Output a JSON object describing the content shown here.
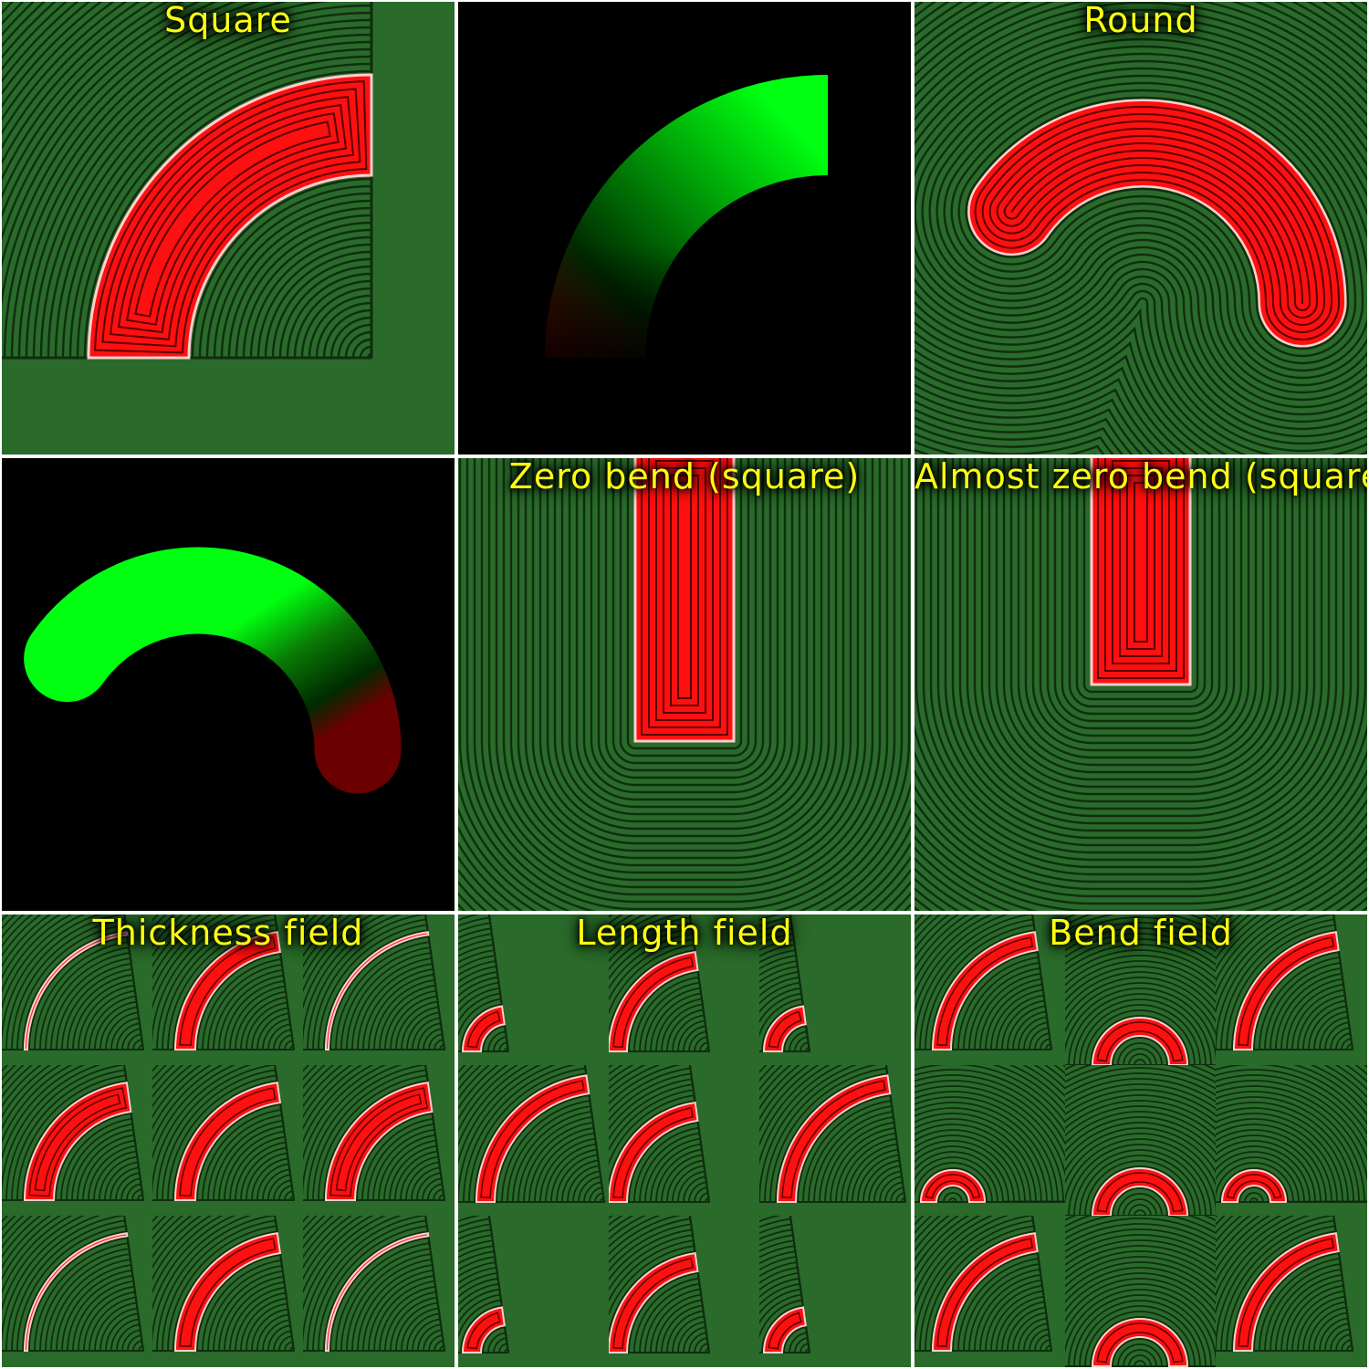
{
  "colors": {
    "background_field": "#2a6a2a",
    "contour_line": "#0f2e10",
    "shape_fill": "#ff1010",
    "shape_contour": "#5a0000",
    "shape_outline": "#ffd0d0",
    "gradient_bright": "#00ff10",
    "gradient_dark": "#002a00",
    "gradient_red": "#6a0000",
    "label_text": "#ffff10",
    "separator": "#ffffff"
  },
  "panels": [
    {
      "id": "square",
      "label": "Square",
      "kind": "field"
    },
    {
      "id": "square-gradient",
      "label": "",
      "kind": "gradient"
    },
    {
      "id": "round",
      "label": "Round",
      "kind": "field"
    },
    {
      "id": "round-gradient",
      "label": "",
      "kind": "gradient"
    },
    {
      "id": "zero-bend-square",
      "label": "Zero bend (square)",
      "kind": "field"
    },
    {
      "id": "almost-zero-bend-square",
      "label": "Almost zero bend (square)",
      "kind": "field"
    },
    {
      "id": "thickness-field",
      "label": "Thickness field",
      "kind": "field-grid"
    },
    {
      "id": "length-field",
      "label": "Length field",
      "kind": "field-grid"
    },
    {
      "id": "bend-field",
      "label": "Bend field",
      "kind": "field-grid"
    }
  ]
}
